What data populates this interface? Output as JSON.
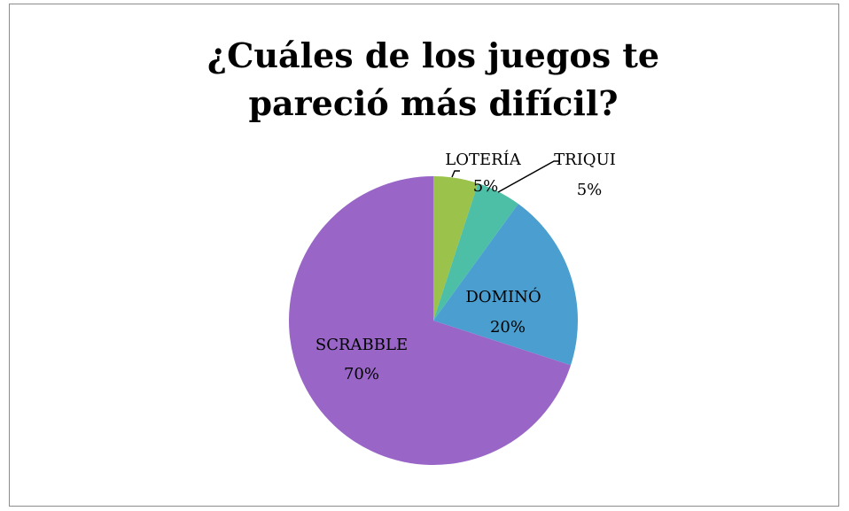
{
  "chart_data": {
    "type": "pie",
    "title": "¿Cuáles de los juegos te pareció más difícil?",
    "categories": [
      "LOTERÍA",
      "TRIQUI",
      "DOMINÓ",
      "SCRABBLE"
    ],
    "values": [
      5,
      5,
      20,
      70
    ],
    "value_labels": [
      "5%",
      "5%",
      "20%",
      "70%"
    ],
    "colors": [
      "#9bc34b",
      "#4dbfa6",
      "#4a9fd0",
      "#9966c8"
    ]
  }
}
